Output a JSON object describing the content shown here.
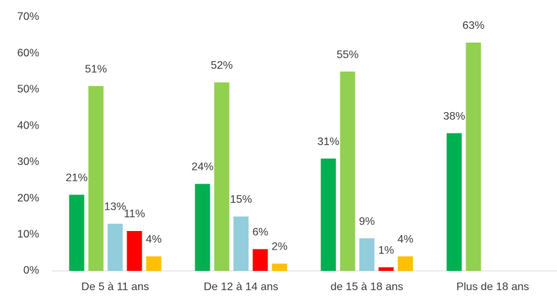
{
  "chart_data": {
    "type": "bar",
    "categories": [
      "De 5 à 11 ans",
      "De 12 à 14 ans",
      "de 15 à 18 ans",
      "Plus de 18 ans"
    ],
    "series": [
      {
        "color": "#00b050",
        "values": [
          21,
          24,
          31,
          38
        ],
        "value_labels": [
          "21%",
          "24%",
          "31%",
          "38%"
        ]
      },
      {
        "color": "#92d050",
        "values": [
          51,
          52,
          55,
          63
        ],
        "value_labels": [
          "51%",
          "52%",
          "55%",
          "63%"
        ]
      },
      {
        "color": "#92cddc",
        "values": [
          13,
          15,
          9,
          null
        ],
        "value_labels": [
          "13%",
          "15%",
          "9%",
          null
        ]
      },
      {
        "color": "#ff0000",
        "values": [
          11,
          6,
          1,
          null
        ],
        "value_labels": [
          "11%",
          "6%",
          "1%",
          null
        ]
      },
      {
        "color": "#ffc000",
        "values": [
          4,
          2,
          4,
          null
        ],
        "value_labels": [
          "4%",
          "2%",
          "4%",
          null
        ]
      }
    ],
    "ylim": [
      0,
      70
    ],
    "yticks": [
      {
        "value": 0,
        "label": "0%"
      },
      {
        "value": 10,
        "label": "10%"
      },
      {
        "value": 20,
        "label": "20%"
      },
      {
        "value": 30,
        "label": "30%"
      },
      {
        "value": 40,
        "label": "40%"
      },
      {
        "value": 50,
        "label": "50%"
      },
      {
        "value": 60,
        "label": "60%"
      },
      {
        "value": 70,
        "label": "70%"
      }
    ],
    "grid": false
  }
}
